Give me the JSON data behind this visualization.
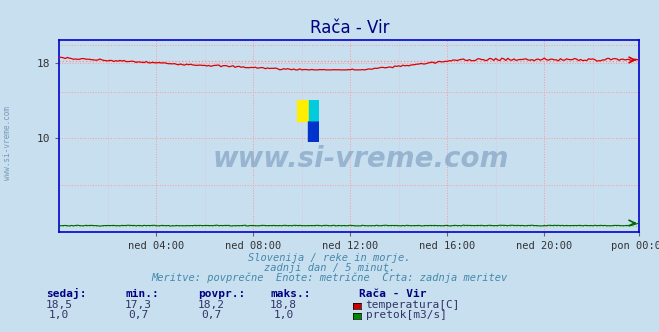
{
  "title": "Rača - Vir",
  "bg_color": "#c8dff0",
  "plot_bg_color": "#c8dff0",
  "frame_color": "#0000cc",
  "xlabel": "",
  "ylabel": "",
  "xlim": [
    0,
    287
  ],
  "ylim": [
    0,
    20.5
  ],
  "ytick_positions": [
    10,
    18
  ],
  "ytick_labels": [
    "10",
    "18"
  ],
  "xtick_positions": [
    48,
    96,
    144,
    192,
    240,
    287
  ],
  "xtick_labels": [
    "ned 04:00",
    "ned 08:00",
    "ned 12:00",
    "ned 16:00",
    "ned 20:00",
    "pon 00:00"
  ],
  "temp_color": "#dd0000",
  "temp_avg_color": "#ff8888",
  "flow_color": "#006600",
  "flow_avg_color": "#88cc88",
  "temp_min": 17.3,
  "temp_max": 18.8,
  "temp_avg": 18.2,
  "temp_current": 18.5,
  "flow_min": 0.7,
  "flow_max": 1.0,
  "flow_avg": 0.7,
  "flow_current": 1.0,
  "grid_color_major": "#ff9999",
  "title_color": "#000080",
  "subtitle_color": "#4488aa",
  "label_color": "#000080",
  "value_color": "#333366",
  "watermark_text": "www.si-vreme.com",
  "watermark_color": "#7799bb",
  "watermark_alpha": 0.6,
  "subtitle_lines": [
    "Slovenija / reke in morje.",
    "zadnji dan / 5 minut.",
    "Meritve: povprečne  Enote: metrične  Črta: zadnja meritev"
  ],
  "stat_headers": [
    "sedaj:",
    "min.:",
    "povpr.:",
    "maks.:"
  ],
  "stat_values_temp": [
    "18,5",
    "17,3",
    "18,2",
    "18,8"
  ],
  "stat_values_flow": [
    "1,0",
    "0,7",
    "0,7",
    "1,0"
  ],
  "legend_station": "Rača - Vir",
  "legend_items": [
    "temperatura[C]",
    "pretok[m3/s]"
  ],
  "legend_colors": [
    "#cc0000",
    "#008800"
  ],
  "left_label": "www.si-vreme.com"
}
